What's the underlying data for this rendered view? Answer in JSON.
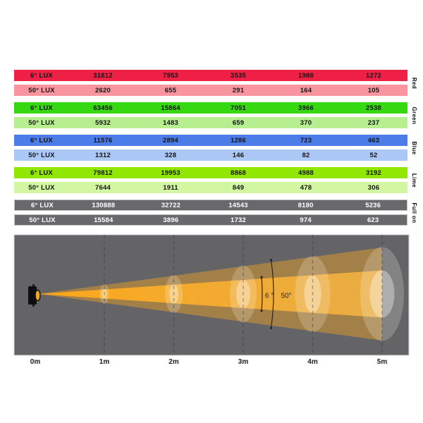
{
  "table": {
    "row_labels": [
      "6° LUX",
      "50° LUX"
    ],
    "groups": [
      {
        "name": "Red",
        "colors": [
          "#ef2045",
          "#f8959f"
        ],
        "text_color": "#141414",
        "bordered": false,
        "rows": [
          [
            31812,
            7953,
            3535,
            1988,
            1272
          ],
          [
            2620,
            655,
            291,
            164,
            105
          ]
        ]
      },
      {
        "name": "Green",
        "colors": [
          "#36d911",
          "#b6ee90"
        ],
        "text_color": "#141414",
        "bordered": false,
        "rows": [
          [
            63456,
            15864,
            7051,
            3966,
            2538
          ],
          [
            5932,
            1483,
            659,
            370,
            237
          ]
        ]
      },
      {
        "name": "Blue",
        "colors": [
          "#4c7ce8",
          "#aac7f6"
        ],
        "text_color": "#141414",
        "bordered": false,
        "rows": [
          [
            11576,
            2894,
            1286,
            723,
            463
          ],
          [
            1312,
            328,
            146,
            82,
            52
          ]
        ]
      },
      {
        "name": "Lime",
        "colors": [
          "#91e702",
          "#d3f6a2"
        ],
        "text_color": "#141414",
        "bordered": false,
        "rows": [
          [
            79812,
            19953,
            8868,
            4988,
            3192
          ],
          [
            7644,
            1911,
            849,
            478,
            306
          ]
        ]
      },
      {
        "name": "Full on",
        "colors": [
          "#69696b",
          "#69696b"
        ],
        "text_color": "#ffffff",
        "bordered": true,
        "rows": [
          [
            130888,
            32722,
            14543,
            8180,
            5236
          ],
          [
            15584,
            3896,
            1732,
            974,
            623
          ]
        ]
      }
    ]
  },
  "diagram": {
    "distances": [
      "0m",
      "1m",
      "2m",
      "3m",
      "4m",
      "5m"
    ],
    "angle_labels": {
      "narrow": "6 °",
      "wide": "50°"
    },
    "colors": {
      "panel": "#646466",
      "beam": "#fba81a",
      "beam_far": "#e9ad45"
    }
  },
  "chart_data": {
    "type": "table",
    "title": "LUX by distance and color",
    "distances_m": [
      1,
      2,
      3,
      4,
      5
    ],
    "series": [
      {
        "name": "Red 6° LUX",
        "values": [
          31812,
          7953,
          3535,
          1988,
          1272
        ]
      },
      {
        "name": "Red 50° LUX",
        "values": [
          2620,
          655,
          291,
          164,
          105
        ]
      },
      {
        "name": "Green 6° LUX",
        "values": [
          63456,
          15864,
          7051,
          3966,
          2538
        ]
      },
      {
        "name": "Green 50° LUX",
        "values": [
          5932,
          1483,
          659,
          370,
          237
        ]
      },
      {
        "name": "Blue 6° LUX",
        "values": [
          11576,
          2894,
          1286,
          723,
          463
        ]
      },
      {
        "name": "Blue 50° LUX",
        "values": [
          1312,
          328,
          146,
          82,
          52
        ]
      },
      {
        "name": "Lime 6° LUX",
        "values": [
          79812,
          19953,
          8868,
          4988,
          3192
        ]
      },
      {
        "name": "Lime 50° LUX",
        "values": [
          7644,
          1911,
          849,
          478,
          306
        ]
      },
      {
        "name": "Full on 6° LUX",
        "values": [
          130888,
          32722,
          14543,
          8180,
          5236
        ]
      },
      {
        "name": "Full on 50° LUX",
        "values": [
          15584,
          3896,
          1732,
          974,
          623
        ]
      }
    ],
    "beam_angles_deg": {
      "narrow": 6,
      "wide": 50
    }
  }
}
